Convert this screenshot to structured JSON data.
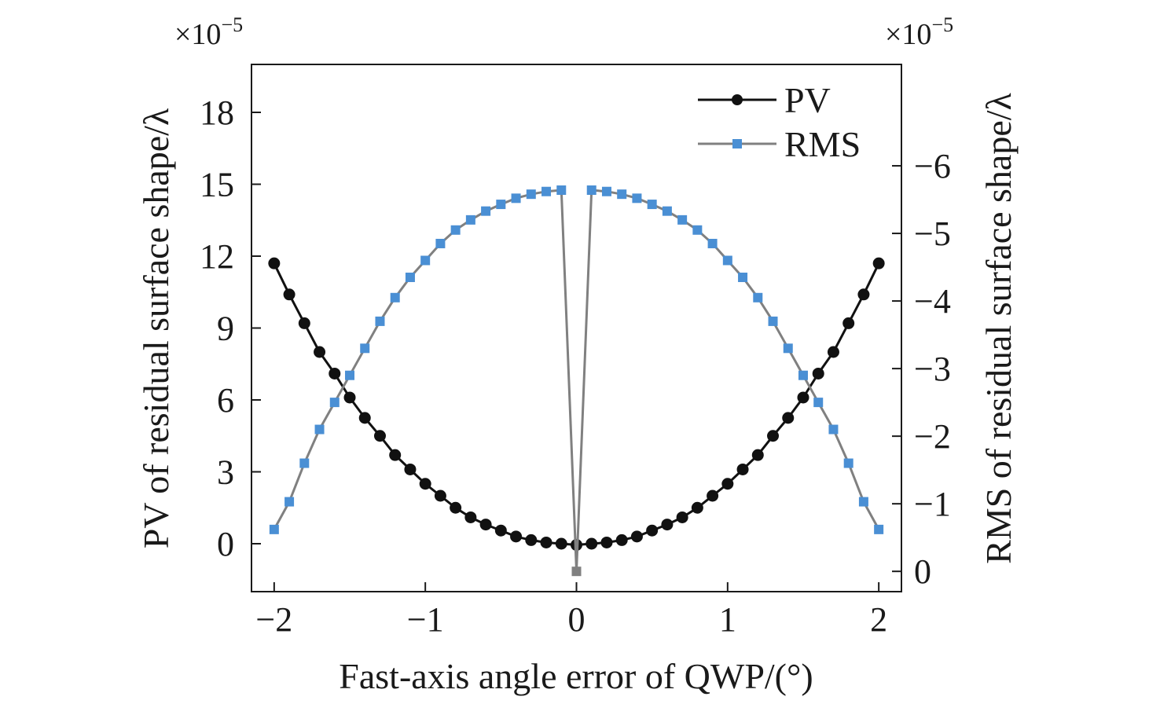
{
  "chart_data": {
    "type": "line",
    "xlabel": "Fast-axis angle error of QWP/(°)",
    "ylabel_left": "PV of residual surface shape/λ",
    "ylabel_right": "RMS of residual surface shape/λ",
    "multiplier_left_base": "×10",
    "multiplier_left_exp": "−5",
    "multiplier_right_base": "×10",
    "multiplier_right_exp": "−5",
    "xlim": [
      -2.15,
      2.15
    ],
    "ylim_left": [
      -2,
      20
    ],
    "ylim_right": [
      0.3,
      -7.5
    ],
    "x_ticks": [
      -2,
      -1,
      0,
      1,
      2
    ],
    "x_tick_labels": [
      "−2",
      "−1",
      "0",
      "1",
      "2"
    ],
    "y_left_ticks": [
      0,
      3,
      6,
      9,
      12,
      15,
      18
    ],
    "y_left_tick_labels": [
      "0",
      "3",
      "6",
      "9",
      "12",
      "15",
      "18"
    ],
    "y_right_ticks": [
      0,
      -1,
      -2,
      -3,
      -4,
      -5,
      -6
    ],
    "y_right_tick_labels": [
      "0",
      "−1",
      "−2",
      "−3",
      "−4",
      "−5",
      "−6"
    ],
    "legend_position": "top-right",
    "series": [
      {
        "name": "PV",
        "axis": "left",
        "color": "#111111",
        "marker": "circle",
        "x": [
          -2,
          -1.9,
          -1.8,
          -1.7,
          -1.6,
          -1.5,
          -1.4,
          -1.3,
          -1.2,
          -1.1,
          -1.0,
          -0.9,
          -0.8,
          -0.7,
          -0.6,
          -0.5,
          -0.4,
          -0.3,
          -0.2,
          -0.1,
          0,
          0.1,
          0.2,
          0.3,
          0.4,
          0.5,
          0.6,
          0.7,
          0.8,
          0.9,
          1.0,
          1.1,
          1.2,
          1.3,
          1.4,
          1.5,
          1.6,
          1.7,
          1.8,
          1.9,
          2
        ],
        "y": [
          11.7,
          10.4,
          9.2,
          8.0,
          7.1,
          6.1,
          5.25,
          4.5,
          3.7,
          3.1,
          2.5,
          2.0,
          1.5,
          1.1,
          0.8,
          0.55,
          0.3,
          0.15,
          0.05,
          0.0,
          -0.05,
          0.0,
          0.05,
          0.15,
          0.3,
          0.55,
          0.8,
          1.1,
          1.5,
          2.0,
          2.5,
          3.1,
          3.7,
          4.5,
          5.25,
          6.1,
          7.1,
          8.0,
          9.2,
          10.4,
          11.7
        ]
      },
      {
        "name": "RMS",
        "axis": "right",
        "color": "#808080",
        "marker_color": "#4a8fd4",
        "marker": "square",
        "x": [
          -2,
          -1.9,
          -1.8,
          -1.7,
          -1.6,
          -1.5,
          -1.4,
          -1.3,
          -1.2,
          -1.1,
          -1.0,
          -0.9,
          -0.8,
          -0.7,
          -0.6,
          -0.5,
          -0.4,
          -0.3,
          -0.2,
          -0.1,
          0,
          0.1,
          0.2,
          0.3,
          0.4,
          0.5,
          0.6,
          0.7,
          0.8,
          0.9,
          1.0,
          1.1,
          1.2,
          1.3,
          1.4,
          1.5,
          1.6,
          1.7,
          1.8,
          1.9,
          2
        ],
        "y": [
          -0.62,
          -1.03,
          -1.6,
          -2.1,
          -2.5,
          -2.9,
          -3.3,
          -3.7,
          -4.05,
          -4.35,
          -4.6,
          -4.85,
          -5.05,
          -5.2,
          -5.33,
          -5.43,
          -5.52,
          -5.58,
          -5.62,
          -5.64,
          0,
          -5.64,
          -5.62,
          -5.58,
          -5.52,
          -5.43,
          -5.33,
          -5.2,
          -5.05,
          -4.85,
          -4.6,
          -4.35,
          -4.05,
          -3.7,
          -3.3,
          -2.9,
          -2.5,
          -2.1,
          -1.6,
          -1.03,
          -0.62
        ]
      }
    ]
  }
}
